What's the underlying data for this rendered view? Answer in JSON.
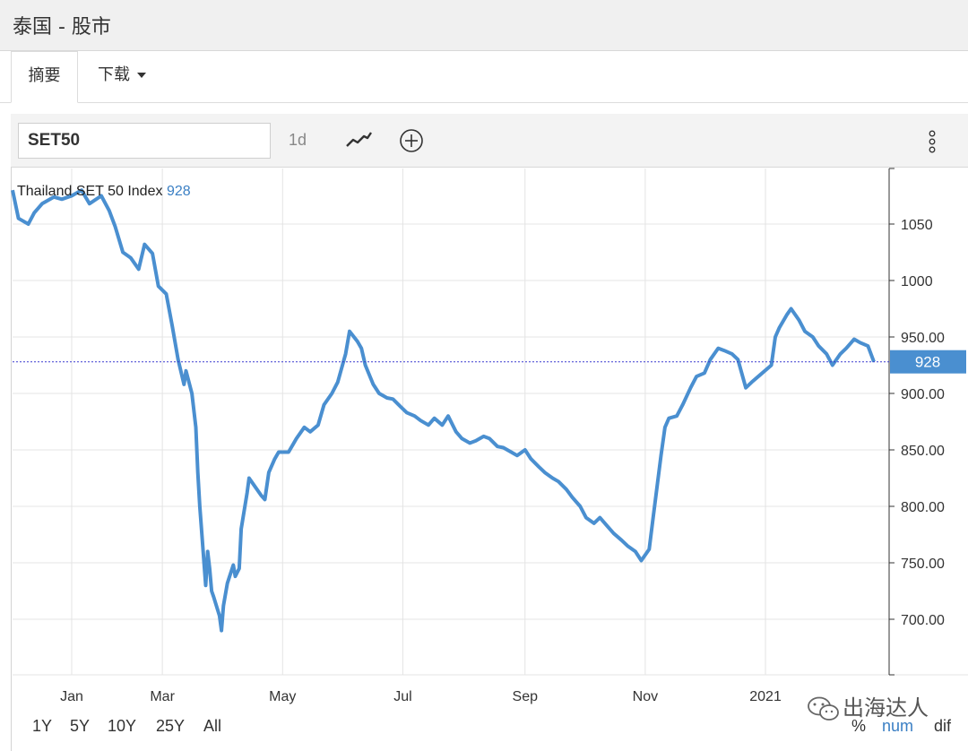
{
  "page": {
    "title": "泰国 - 股市"
  },
  "tabs": [
    {
      "label": "摘要"
    },
    {
      "label": "下载"
    }
  ],
  "toolbar": {
    "symbol": "SET50",
    "interval": "1d",
    "icons": [
      "line-chart-icon",
      "add-indicator-icon",
      "more-options-icon"
    ]
  },
  "range_buttons": [
    "1Y",
    "5Y",
    "10Y",
    "25Y",
    "All"
  ],
  "scale_buttons": [
    "%",
    "num",
    "dif"
  ],
  "watermark": {
    "text": "出海达人"
  },
  "colors": {
    "line": "#4a8fd0",
    "last_price_badge": "#4a8fd0",
    "accent_blue": "#3a7fc4"
  },
  "chart_data": {
    "type": "line",
    "title": "Thailand SET 50 Index",
    "last_value_label": "928",
    "last_value": 928,
    "xlabel": "",
    "ylabel": "",
    "ylim": [
      650,
      1095
    ],
    "grid": true,
    "y_ticks": [
      {
        "value": 700,
        "label": "700.00"
      },
      {
        "value": 750,
        "label": "750.00"
      },
      {
        "value": 800,
        "label": "800.00"
      },
      {
        "value": 850,
        "label": "850.00"
      },
      {
        "value": 900,
        "label": "900.00"
      },
      {
        "value": 950,
        "label": "950.00"
      },
      {
        "value": 1000,
        "label": "1000"
      },
      {
        "value": 1050,
        "label": "1050"
      }
    ],
    "x_ticks": [
      {
        "date": "2020-01-15",
        "label": "Jan"
      },
      {
        "date": "2020-03-01",
        "label": "Mar"
      },
      {
        "date": "2020-05-01",
        "label": "May"
      },
      {
        "date": "2020-07-01",
        "label": "Jul"
      },
      {
        "date": "2020-09-01",
        "label": "Sep"
      },
      {
        "date": "2020-11-01",
        "label": "Nov"
      },
      {
        "date": "2021-01-01",
        "label": "2021"
      }
    ],
    "series": [
      {
        "points": [
          [
            "2019-12-16",
            1080
          ],
          [
            "2019-12-19",
            1055
          ],
          [
            "2019-12-24",
            1050
          ],
          [
            "2019-12-27",
            1060
          ],
          [
            "2019-12-31",
            1068
          ],
          [
            "2020-01-06",
            1074
          ],
          [
            "2020-01-10",
            1072
          ],
          [
            "2020-01-15",
            1075
          ],
          [
            "2020-01-20",
            1080
          ],
          [
            "2020-01-24",
            1068
          ],
          [
            "2020-01-30",
            1075
          ],
          [
            "2020-02-03",
            1062
          ],
          [
            "2020-02-06",
            1048
          ],
          [
            "2020-02-10",
            1025
          ],
          [
            "2020-02-14",
            1020
          ],
          [
            "2020-02-18",
            1010
          ],
          [
            "2020-02-21",
            1032
          ],
          [
            "2020-02-25",
            1024
          ],
          [
            "2020-02-28",
            995
          ],
          [
            "2020-03-03",
            988
          ],
          [
            "2020-03-06",
            960
          ],
          [
            "2020-03-09",
            930
          ],
          [
            "2020-03-12",
            908
          ],
          [
            "2020-03-13",
            920
          ],
          [
            "2020-03-16",
            900
          ],
          [
            "2020-03-18",
            870
          ],
          [
            "2020-03-19",
            830
          ],
          [
            "2020-03-20",
            800
          ],
          [
            "2020-03-23",
            730
          ],
          [
            "2020-03-24",
            760
          ],
          [
            "2020-03-25",
            745
          ],
          [
            "2020-03-26",
            725
          ],
          [
            "2020-03-27",
            720
          ],
          [
            "2020-03-30",
            703
          ],
          [
            "2020-03-31",
            690
          ],
          [
            "2020-04-01",
            712
          ],
          [
            "2020-04-02",
            722
          ],
          [
            "2020-04-03",
            732
          ],
          [
            "2020-04-06",
            748
          ],
          [
            "2020-04-07",
            738
          ],
          [
            "2020-04-09",
            745
          ],
          [
            "2020-04-10",
            780
          ],
          [
            "2020-04-13",
            812
          ],
          [
            "2020-04-14",
            825
          ],
          [
            "2020-04-16",
            820
          ],
          [
            "2020-04-20",
            810
          ],
          [
            "2020-04-22",
            806
          ],
          [
            "2020-04-24",
            830
          ],
          [
            "2020-04-27",
            842
          ],
          [
            "2020-04-29",
            848
          ],
          [
            "2020-05-04",
            848
          ],
          [
            "2020-05-06",
            854
          ],
          [
            "2020-05-08",
            860
          ],
          [
            "2020-05-12",
            870
          ],
          [
            "2020-05-15",
            866
          ],
          [
            "2020-05-19",
            872
          ],
          [
            "2020-05-22",
            890
          ],
          [
            "2020-05-26",
            900
          ],
          [
            "2020-05-29",
            910
          ],
          [
            "2020-06-02",
            935
          ],
          [
            "2020-06-04",
            955
          ],
          [
            "2020-06-08",
            946
          ],
          [
            "2020-06-10",
            940
          ],
          [
            "2020-06-12",
            925
          ],
          [
            "2020-06-16",
            908
          ],
          [
            "2020-06-19",
            900
          ],
          [
            "2020-06-23",
            896
          ],
          [
            "2020-06-26",
            895
          ],
          [
            "2020-06-30",
            888
          ],
          [
            "2020-07-03",
            883
          ],
          [
            "2020-07-07",
            880
          ],
          [
            "2020-07-10",
            876
          ],
          [
            "2020-07-14",
            872
          ],
          [
            "2020-07-17",
            878
          ],
          [
            "2020-07-21",
            872
          ],
          [
            "2020-07-24",
            880
          ],
          [
            "2020-07-28",
            866
          ],
          [
            "2020-07-31",
            860
          ],
          [
            "2020-08-04",
            856
          ],
          [
            "2020-08-07",
            858
          ],
          [
            "2020-08-11",
            862
          ],
          [
            "2020-08-14",
            860
          ],
          [
            "2020-08-18",
            853
          ],
          [
            "2020-08-21",
            852
          ],
          [
            "2020-08-25",
            848
          ],
          [
            "2020-08-28",
            845
          ],
          [
            "2020-09-01",
            850
          ],
          [
            "2020-09-04",
            842
          ],
          [
            "2020-09-08",
            835
          ],
          [
            "2020-09-11",
            830
          ],
          [
            "2020-09-15",
            825
          ],
          [
            "2020-09-18",
            822
          ],
          [
            "2020-09-22",
            815
          ],
          [
            "2020-09-25",
            808
          ],
          [
            "2020-09-29",
            800
          ],
          [
            "2020-10-02",
            790
          ],
          [
            "2020-10-06",
            785
          ],
          [
            "2020-10-09",
            790
          ],
          [
            "2020-10-13",
            782
          ],
          [
            "2020-10-16",
            776
          ],
          [
            "2020-10-20",
            770
          ],
          [
            "2020-10-23",
            765
          ],
          [
            "2020-10-27",
            760
          ],
          [
            "2020-10-30",
            752
          ],
          [
            "2020-11-03",
            762
          ],
          [
            "2020-11-05",
            790
          ],
          [
            "2020-11-09",
            845
          ],
          [
            "2020-11-11",
            870
          ],
          [
            "2020-11-13",
            878
          ],
          [
            "2020-11-17",
            880
          ],
          [
            "2020-11-20",
            890
          ],
          [
            "2020-11-24",
            905
          ],
          [
            "2020-11-27",
            915
          ],
          [
            "2020-12-01",
            918
          ],
          [
            "2020-12-04",
            930
          ],
          [
            "2020-12-08",
            940
          ],
          [
            "2020-12-11",
            938
          ],
          [
            "2020-12-15",
            935
          ],
          [
            "2020-12-18",
            930
          ],
          [
            "2020-12-22",
            905
          ],
          [
            "2020-12-25",
            910
          ],
          [
            "2020-12-29",
            916
          ],
          [
            "2021-01-04",
            925
          ],
          [
            "2021-01-06",
            950
          ],
          [
            "2021-01-08",
            958
          ],
          [
            "2021-01-12",
            970
          ],
          [
            "2021-01-14",
            975
          ],
          [
            "2021-01-18",
            965
          ],
          [
            "2021-01-21",
            955
          ],
          [
            "2021-01-25",
            950
          ],
          [
            "2021-01-28",
            942
          ],
          [
            "2021-02-01",
            935
          ],
          [
            "2021-02-04",
            925
          ],
          [
            "2021-02-08",
            935
          ],
          [
            "2021-02-11",
            940
          ],
          [
            "2021-02-15",
            948
          ],
          [
            "2021-02-18",
            945
          ],
          [
            "2021-02-22",
            942
          ],
          [
            "2021-02-25",
            928
          ]
        ]
      }
    ]
  }
}
